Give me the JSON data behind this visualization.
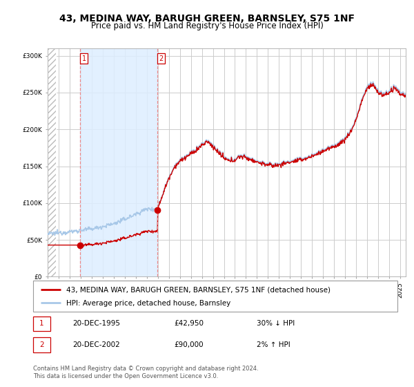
{
  "title": "43, MEDINA WAY, BARUGH GREEN, BARNSLEY, S75 1NF",
  "subtitle": "Price paid vs. HM Land Registry's House Price Index (HPI)",
  "legend_line1": "43, MEDINA WAY, BARUGH GREEN, BARNSLEY, S75 1NF (detached house)",
  "legend_line2": "HPI: Average price, detached house, Barnsley",
  "annotation_text": "Contains HM Land Registry data © Crown copyright and database right 2024.\nThis data is licensed under the Open Government Licence v3.0.",
  "table_rows": [
    [
      "1",
      "20-DEC-1995",
      "£42,950",
      "30% ↓ HPI"
    ],
    [
      "2",
      "20-DEC-2002",
      "£90,000",
      "2% ↑ HPI"
    ]
  ],
  "sale1_x": 1995.97,
  "sale1_y": 42950,
  "sale2_x": 2002.97,
  "sale2_y": 90000,
  "ylim": [
    0,
    310000
  ],
  "xlim_start": 1993.0,
  "xlim_end": 2025.5,
  "ylabel_ticks": [
    0,
    50000,
    100000,
    150000,
    200000,
    250000,
    300000
  ],
  "ylabel_labels": [
    "£0",
    "£50K",
    "£100K",
    "£150K",
    "£200K",
    "£250K",
    "£300K"
  ],
  "hpi_color": "#a8c8e8",
  "price_color": "#cc0000",
  "shade_color": "#ddeeff",
  "dot_color": "#cc0000",
  "grid_color": "#cccccc",
  "bg_color": "#ffffff",
  "title_fontsize": 10,
  "subtitle_fontsize": 8.5,
  "tick_fontsize": 6.5,
  "legend_fontsize": 7.5,
  "table_fontsize": 7.5,
  "annot_fontsize": 6
}
